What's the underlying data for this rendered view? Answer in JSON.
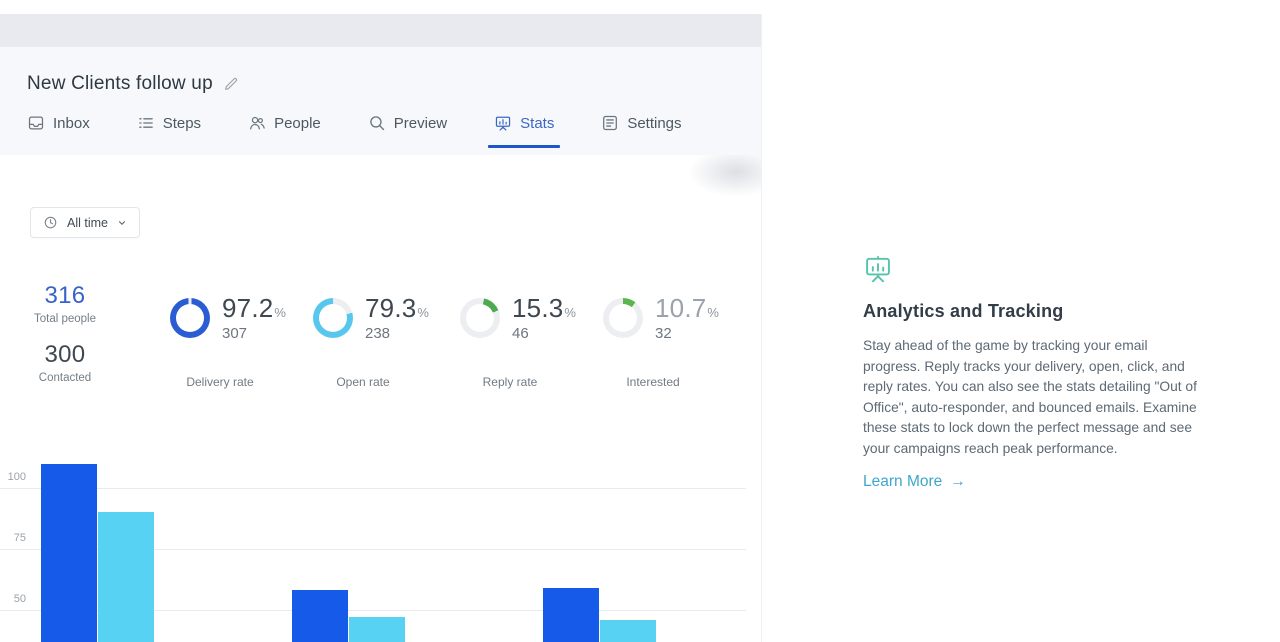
{
  "campaign": {
    "title": "New Clients follow up"
  },
  "tabs": [
    {
      "label": "Inbox",
      "active": false
    },
    {
      "label": "Steps",
      "active": false
    },
    {
      "label": "People",
      "active": false
    },
    {
      "label": "Preview",
      "active": false
    },
    {
      "label": "Stats",
      "active": true
    },
    {
      "label": "Settings",
      "active": false
    }
  ],
  "filter": {
    "label": "All time"
  },
  "summary": {
    "total_value": "316",
    "total_label": "Total people",
    "contacted_value": "300",
    "contacted_label": "Contacted"
  },
  "stats": [
    {
      "value": "97.2",
      "unit": "%",
      "percent": 97.2,
      "count": "307",
      "label": "Delivery rate",
      "color": "#2a5cd3",
      "track": "#eceef1",
      "muted": false
    },
    {
      "value": "79.3",
      "unit": "%",
      "percent": 79.3,
      "count": "238",
      "label": "Open rate",
      "color": "#57c7ee",
      "track": "#eceef1",
      "muted": false
    },
    {
      "value": "15.3",
      "unit": "%",
      "percent": 15.3,
      "count": "46",
      "label": "Reply rate",
      "color": "#4cab50",
      "track": "#eceef1",
      "muted": false
    },
    {
      "value": "10.7",
      "unit": "%",
      "percent": 10.7,
      "count": "32",
      "label": "Interested",
      "color": "#5bb64f",
      "track": "#eceef1",
      "muted": true
    }
  ],
  "chart_data": {
    "type": "bar",
    "categories": [
      "",
      "",
      ""
    ],
    "series": [
      {
        "name": "dark-blue",
        "color": "#155ae8",
        "values": [
          110,
          58,
          59
        ]
      },
      {
        "name": "light-blue",
        "color": "#57d2f3",
        "values": [
          90,
          47,
          46
        ]
      }
    ],
    "y_ticks": [
      100,
      75,
      50
    ],
    "ylim": [
      40,
      115
    ],
    "grid": true,
    "legend": "none",
    "clipped_bottom": true
  },
  "aside": {
    "title": "Analytics and Tracking",
    "body": "Stay ahead of the game by tracking your email progress. Reply tracks your delivery, open, click, and reply rates. You can also see the stats detailing \"Out of Office\", auto-responder, and bounced emails. Examine these stats to lock down the perfect message and see your campaigns reach peak performance.",
    "link_label": "Learn More",
    "arrow": "→",
    "accent": "#57c2a8",
    "link_color": "#3ea6c8"
  }
}
